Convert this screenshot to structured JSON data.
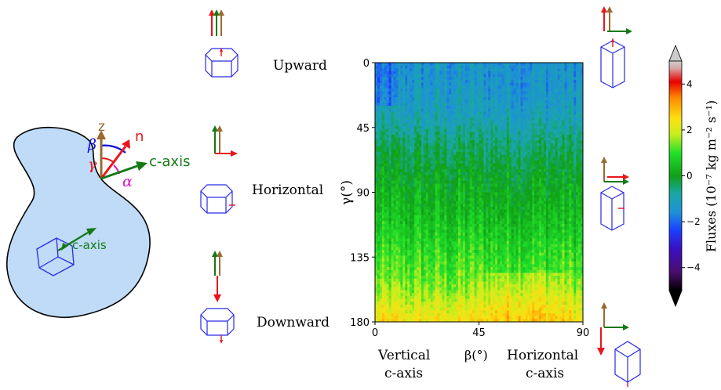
{
  "left_diagram": {
    "z_label": "z",
    "n_label": "n",
    "c_axis_label": "c-axis",
    "beta_symbol": "β",
    "gamma_symbol": "γ",
    "alpha_symbol": "α",
    "crystal_axis_label": "c-axis"
  },
  "orientation_labels": {
    "upward": "Upward",
    "horizontal": "Horizontal",
    "downward": "Downward"
  },
  "bottom_labels": {
    "vertical_line1": "Vertical",
    "vertical_line2": "c-axis",
    "beta_axis": "β(°)",
    "horizontal_line1": "Horizontal",
    "horizontal_line2": "c-axis"
  },
  "colors": {
    "z_arrow": "#9b6a2f",
    "n_arrow": "#e8151b",
    "c_axis_arrow": "#157a15",
    "beta_arc": "#1010e0",
    "alpha_arc": "#e010c8",
    "blob_fill": "#bfdbf7",
    "crystal_stroke": "#2a2ae8"
  },
  "chart_data": {
    "type": "heatmap",
    "xlabel": "β(°)",
    "ylabel": "γ(°)",
    "x_ticks": [
      "0",
      "45",
      "90"
    ],
    "y_ticks": [
      "0",
      "45",
      "90",
      "135",
      "180"
    ],
    "xlim": [
      0,
      90
    ],
    "ylim": [
      0,
      180
    ],
    "y_inverted": true,
    "colorbar": {
      "label": "Fluxes (10⁻⁷ kg m⁻² s⁻¹)",
      "ticks": [
        "4",
        "2",
        "0",
        "−2",
        "−4"
      ],
      "range": [
        -5,
        5
      ],
      "colormap": "nipy_spectral"
    },
    "gamma_levels": [
      0,
      10,
      20,
      30,
      40,
      50,
      60,
      70,
      80,
      90,
      100,
      110,
      120,
      130,
      140,
      150,
      160,
      170,
      180
    ],
    "mean_flux_by_gamma": [
      -1.4,
      -1.4,
      -1.3,
      -1.2,
      -1.0,
      -0.7,
      -0.4,
      -0.2,
      0.0,
      0.2,
      0.3,
      0.5,
      0.7,
      0.9,
      1.1,
      1.3,
      1.6,
      2.0,
      2.4
    ]
  }
}
